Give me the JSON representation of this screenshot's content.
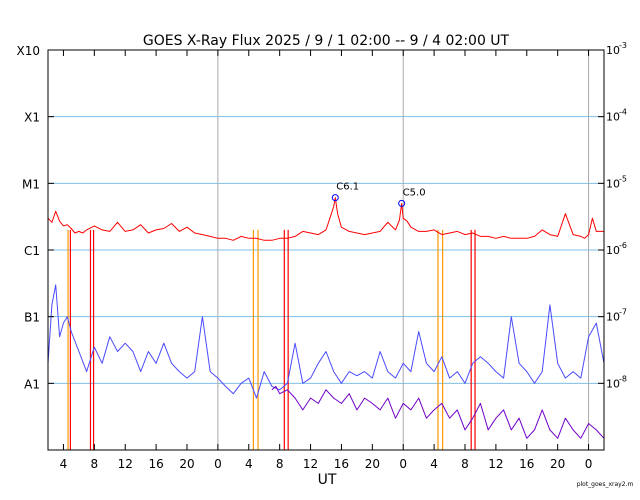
{
  "chart_data": {
    "type": "line",
    "title": "GOES X-Ray Flux   2025 /  9 /  1   02:00 --  9 /  4   02:00   UT",
    "xlabel": "UT",
    "x_range_hours_ut": [
      2,
      74
    ],
    "x_tick_labels": [
      "4",
      "8",
      "12",
      "16",
      "20",
      "0",
      "4",
      "8",
      "12",
      "16",
      "20",
      "0",
      "4",
      "8",
      "12",
      "16",
      "20",
      "0"
    ],
    "x_tick_hours": [
      4,
      8,
      12,
      16,
      20,
      24,
      28,
      32,
      36,
      40,
      44,
      48,
      52,
      56,
      60,
      64,
      68,
      72
    ],
    "day_boundaries_hours": [
      24,
      48,
      72
    ],
    "y_scale": "log",
    "ylim_w_m2": [
      1e-09,
      0.001
    ],
    "left_class_labels": [
      "X10",
      "X1",
      "M1",
      "C1",
      "B1",
      "A1"
    ],
    "left_class_values": [
      0.001,
      0.0001,
      1e-05,
      1e-06,
      1e-07,
      1e-08
    ],
    "right_tick_labels": [
      {
        "base": "10",
        "exp": "-3"
      },
      {
        "base": "10",
        "exp": "-4"
      },
      {
        "base": "10",
        "exp": "-5"
      },
      {
        "base": "10",
        "exp": "-6"
      },
      {
        "base": "10",
        "exp": "-7"
      },
      {
        "base": "10",
        "exp": "-8"
      }
    ],
    "gridlines_w_m2": [
      0.0001,
      1e-05,
      1e-06,
      1e-07,
      1e-08
    ],
    "grid_color": "#7fbfea",
    "annotations": [
      {
        "label": "C6.1",
        "hour": 39.2,
        "value": 6.1e-06
      },
      {
        "label": "C5.0",
        "hour": 47.8,
        "value": 5e-06
      }
    ],
    "series": [
      {
        "color": "#ff0000",
        "x": [
          2,
          2.5,
          3,
          3.5,
          4,
          4.5,
          5,
          5.5,
          6,
          6.5,
          7,
          8,
          9,
          10,
          11,
          12,
          13,
          14,
          15,
          16,
          17,
          18,
          19,
          20,
          21,
          22,
          23,
          24,
          25,
          26,
          27,
          28,
          29,
          30,
          31,
          32,
          33,
          34,
          35,
          36,
          37,
          38,
          38.5,
          39,
          39.2,
          39.5,
          40,
          41,
          42,
          43,
          44,
          45,
          46,
          47,
          47.5,
          47.8,
          48,
          48.5,
          49,
          50,
          51,
          52,
          53,
          54,
          55,
          56,
          57,
          58,
          59,
          60,
          61,
          62,
          63,
          64,
          65,
          66,
          67,
          68,
          69,
          70,
          71,
          71.5,
          72,
          72.5,
          73,
          74
        ],
        "y": [
          3e-06,
          2.6e-06,
          3.8e-06,
          2.7e-06,
          2.3e-06,
          2.4e-06,
          2.1e-06,
          1.8e-06,
          1.9e-06,
          1.8e-06,
          2e-06,
          2.3e-06,
          2e-06,
          1.9e-06,
          2.6e-06,
          1.9e-06,
          2e-06,
          2.4e-06,
          1.8e-06,
          2e-06,
          2.1e-06,
          2.5e-06,
          1.9e-06,
          2.2e-06,
          1.8e-06,
          1.7e-06,
          1.6e-06,
          1.5e-06,
          1.5e-06,
          1.4e-06,
          1.6e-06,
          1.5e-06,
          1.5e-06,
          1.4e-06,
          1.4e-06,
          1.5e-06,
          1.5e-06,
          1.6e-06,
          1.9e-06,
          1.8e-06,
          1.7e-06,
          2e-06,
          3e-06,
          4.5e-06,
          6.1e-06,
          3.5e-06,
          2.2e-06,
          1.9e-06,
          1.8e-06,
          1.7e-06,
          1.8e-06,
          1.9e-06,
          2.6e-06,
          2e-06,
          2.8e-06,
          5e-06,
          3e-06,
          2.7e-06,
          2.2e-06,
          1.9e-06,
          1.9e-06,
          2e-06,
          1.7e-06,
          1.8e-06,
          1.9e-06,
          1.7e-06,
          1.8e-06,
          1.6e-06,
          1.6e-06,
          1.5e-06,
          1.6e-06,
          1.5e-06,
          1.5e-06,
          1.5e-06,
          1.6e-06,
          2e-06,
          1.7e-06,
          1.6e-06,
          3.5e-06,
          1.7e-06,
          1.6e-06,
          1.5e-06,
          1.7e-06,
          3e-06,
          1.9e-06,
          1.9e-06
        ]
      },
      {
        "color": "#4a4aff",
        "x": [
          2,
          2.5,
          3,
          3.5,
          4,
          4.5,
          5,
          6,
          7,
          8,
          9,
          10,
          11,
          12,
          13,
          14,
          15,
          16,
          17,
          18,
          19,
          20,
          21,
          22,
          23,
          24,
          25,
          26,
          27,
          28,
          29,
          30,
          31,
          32,
          33,
          34,
          35,
          36,
          37,
          38,
          39,
          40,
          41,
          42,
          43,
          44,
          45,
          46,
          47,
          48,
          49,
          50,
          51,
          52,
          53,
          54,
          55,
          56,
          57,
          58,
          59,
          60,
          61,
          62,
          63,
          64,
          65,
          66,
          67,
          68,
          69,
          70,
          71,
          72,
          73,
          74
        ],
        "y": [
          2e-08,
          1.5e-07,
          3e-07,
          5e-08,
          8e-08,
          1e-07,
          6e-08,
          3e-08,
          1.5e-08,
          3.5e-08,
          2e-08,
          5e-08,
          3e-08,
          4e-08,
          3e-08,
          1.5e-08,
          3e-08,
          2e-08,
          4e-08,
          2e-08,
          1.5e-08,
          1.2e-08,
          1.5e-08,
          1e-07,
          1.5e-08,
          1.2e-08,
          9e-09,
          7e-09,
          1e-08,
          1.2e-08,
          6e-09,
          1.5e-08,
          9e-09,
          8e-09,
          1e-08,
          4e-08,
          1e-08,
          1.2e-08,
          2e-08,
          3e-08,
          1.5e-08,
          1e-08,
          1.5e-08,
          1.3e-08,
          1.5e-08,
          1.2e-08,
          3e-08,
          1.5e-08,
          1.2e-08,
          2e-08,
          1.5e-08,
          6e-08,
          2e-08,
          1.5e-08,
          2.5e-08,
          1.2e-08,
          1.5e-08,
          1e-08,
          2e-08,
          2.5e-08,
          2e-08,
          1.5e-08,
          1.2e-08,
          1e-07,
          2e-08,
          1.5e-08,
          1e-08,
          1.5e-08,
          1.5e-07,
          2e-08,
          1.2e-08,
          1.5e-08,
          1.2e-08,
          5e-08,
          8e-08,
          2e-08
        ]
      },
      {
        "color": "#7000c8",
        "x": [
          31,
          31.5,
          32,
          33,
          34,
          35,
          36,
          37,
          38,
          39,
          40,
          41,
          42,
          43,
          44,
          45,
          46,
          47,
          48,
          49,
          50,
          51,
          52,
          53,
          54,
          55,
          56,
          57,
          58,
          59,
          60,
          61,
          62,
          63,
          64,
          65,
          66,
          67,
          68,
          69,
          70,
          71,
          72,
          73,
          74
        ],
        "y": [
          8e-09,
          9e-09,
          7e-09,
          8e-09,
          6e-09,
          4e-09,
          6e-09,
          5e-09,
          8e-09,
          6e-09,
          5e-09,
          7e-09,
          4e-09,
          6e-09,
          5e-09,
          4e-09,
          6e-09,
          3e-09,
          5e-09,
          4e-09,
          6e-09,
          3e-09,
          4e-09,
          5e-09,
          3e-09,
          4e-09,
          2e-09,
          3e-09,
          5e-09,
          2e-09,
          3e-09,
          4e-09,
          2e-09,
          3e-09,
          1.5e-09,
          2e-09,
          4e-09,
          2e-09,
          1.5e-09,
          3e-09,
          2e-09,
          1.5e-09,
          2.5e-09,
          2e-09,
          1.5e-09
        ]
      }
    ],
    "data_gaps": [
      {
        "color": "#ff9900",
        "hour": 4.6
      },
      {
        "color": "#ff0000",
        "hour": 4.9
      },
      {
        "color": "#ff0000",
        "hour": 7.5
      },
      {
        "color": "#ff0000",
        "hour": 7.9
      },
      {
        "color": "#ff9900",
        "hour": 28.6
      },
      {
        "color": "#ff9900",
        "hour": 29.2
      },
      {
        "color": "#ff0000",
        "hour": 32.6
      },
      {
        "color": "#ff0000",
        "hour": 33.1
      },
      {
        "color": "#ff9900",
        "hour": 52.5
      },
      {
        "color": "#ff9900",
        "hour": 53.1
      },
      {
        "color": "#ff0000",
        "hour": 56.8
      },
      {
        "color": "#ff0000",
        "hour": 57.3
      }
    ],
    "credit": "plot_goes_xray2.m"
  }
}
